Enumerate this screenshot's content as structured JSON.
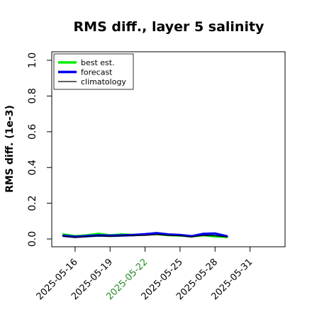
{
  "chart_data": {
    "type": "line",
    "title": "RMS diff., layer 5 salinity",
    "xlabel": "",
    "ylabel": "RMS diff. (1e-3)",
    "ylim": [
      0,
      1.0
    ],
    "yticks": [
      0.0,
      0.2,
      0.4,
      0.6,
      0.8,
      1.0
    ],
    "ytick_labels": [
      "0.0",
      "0.2",
      "0.4",
      "0.6",
      "0.8",
      "1.0"
    ],
    "xlim": [
      "2025-05-14",
      "2025-06-03"
    ],
    "xticks": [
      "2025-05-16",
      "2025-05-19",
      "2025-05-22",
      "2025-05-25",
      "2025-05-28",
      "2025-05-31"
    ],
    "xtick_colors": [
      "#000000",
      "#000000",
      "#228b22",
      "#000000",
      "#000000",
      "#000000"
    ],
    "grid": false,
    "legend_position": "top-left",
    "x": [
      "2025-05-15",
      "2025-05-16",
      "2025-05-17",
      "2025-05-18",
      "2025-05-19",
      "2025-05-20",
      "2025-05-21",
      "2025-05-22",
      "2025-05-23",
      "2025-05-24",
      "2025-05-25",
      "2025-05-26",
      "2025-05-27",
      "2025-05-28",
      "2025-05-29"
    ],
    "series": [
      {
        "name": "best est.",
        "color": "#00ee00",
        "width": 3.5,
        "values": [
          0.025,
          0.015,
          0.02,
          0.028,
          0.02,
          0.025,
          0.022,
          0.025,
          0.028,
          0.022,
          0.02,
          0.015,
          0.022,
          0.015,
          0.012
        ]
      },
      {
        "name": "forecast",
        "color": "#0000ee",
        "width": 3.5,
        "values": [
          0.018,
          0.012,
          0.016,
          0.02,
          0.018,
          0.02,
          0.022,
          0.026,
          0.032,
          0.025,
          0.022,
          0.015,
          0.028,
          0.03,
          0.015
        ]
      },
      {
        "name": "climatology",
        "color": "#000000",
        "width": 1.3,
        "values": [
          0.015,
          0.01,
          0.013,
          0.018,
          0.015,
          0.018,
          0.02,
          0.02,
          0.025,
          0.02,
          0.018,
          0.012,
          0.02,
          0.018,
          0.012
        ]
      }
    ]
  }
}
